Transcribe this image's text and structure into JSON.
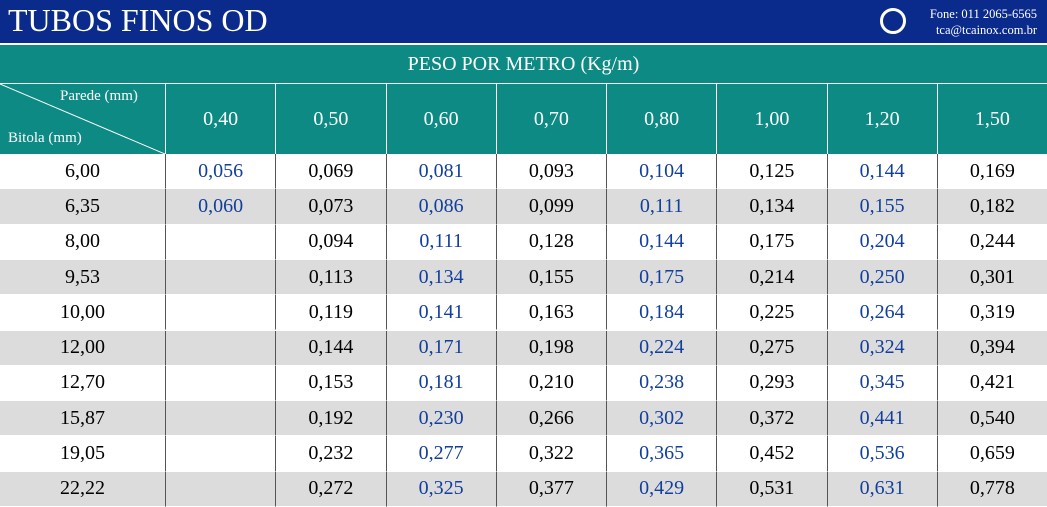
{
  "header": {
    "title": "TUBOS FINOS OD",
    "phone": "Fone: 011 2065-6565",
    "email": "tca@tcainox.com.br"
  },
  "table": {
    "caption": "PESO POR METRO (Kg/m)",
    "corner_top": "Parede (mm)",
    "corner_bottom": "Bitola (mm)",
    "columns": [
      "0,40",
      "0,50",
      "0,60",
      "0,70",
      "0,80",
      "1,00",
      "1,20",
      "1,50"
    ],
    "rows": [
      [
        "6,00",
        "0,056",
        "0,069",
        "0,081",
        "0,093",
        "0,104",
        "0,125",
        "0,144",
        "0,169"
      ],
      [
        "6,35",
        "0,060",
        "0,073",
        "0,086",
        "0,099",
        "0,111",
        "0,134",
        "0,155",
        "0,182"
      ],
      [
        "8,00",
        null,
        "0,094",
        "0,111",
        "0,128",
        "0,144",
        "0,175",
        "0,204",
        "0,244"
      ],
      [
        "9,53",
        null,
        "0,113",
        "0,134",
        "0,155",
        "0,175",
        "0,214",
        "0,250",
        "0,301"
      ],
      [
        "10,00",
        null,
        "0,119",
        "0,141",
        "0,163",
        "0,184",
        "0,225",
        "0,264",
        "0,319"
      ],
      [
        "12,00",
        null,
        "0,144",
        "0,171",
        "0,198",
        "0,224",
        "0,275",
        "0,324",
        "0,394"
      ],
      [
        "12,70",
        null,
        "0,153",
        "0,181",
        "0,210",
        "0,238",
        "0,293",
        "0,345",
        "0,421"
      ],
      [
        "15,87",
        null,
        "0,192",
        "0,230",
        "0,266",
        "0,302",
        "0,372",
        "0,441",
        "0,540"
      ],
      [
        "19,05",
        null,
        "0,232",
        "0,277",
        "0,322",
        "0,365",
        "0,452",
        "0,536",
        "0,659"
      ],
      [
        "22,22",
        null,
        "0,272",
        "0,325",
        "0,377",
        "0,429",
        "0,531",
        "0,631",
        "0,778"
      ]
    ]
  }
}
